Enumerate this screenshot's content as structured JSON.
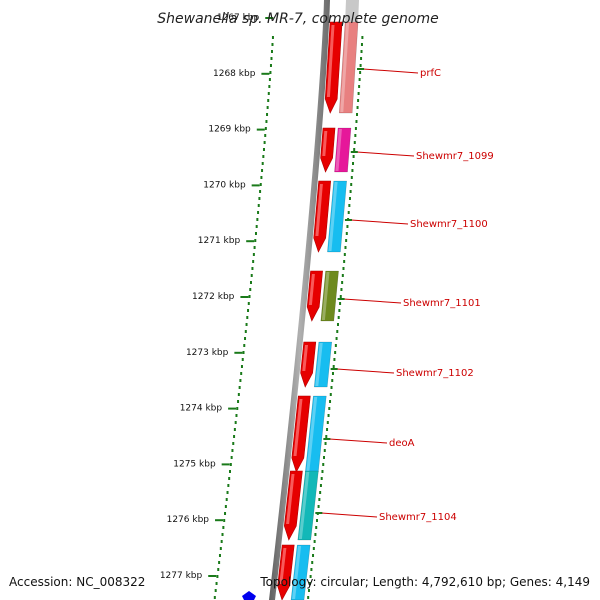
{
  "title": "Shewanella sp. MR-7, complete genome",
  "footer": {
    "accession": "Accession: NC_008322",
    "topology": "Topology: circular; Length: 4,792,610 bp; Genes: 4,149"
  },
  "ticks": [
    "1267 kbp",
    "1268 kbp",
    "1269 kbp",
    "1270 kbp",
    "1271 kbp",
    "1272 kbp",
    "1273 kbp",
    "1274 kbp",
    "1275 kbp",
    "1276 kbp",
    "1277 kbp"
  ],
  "genes": [
    {
      "label": "prfC",
      "color": "#e88080"
    },
    {
      "label": "Shewmr7_1099",
      "color": "#e6179a"
    },
    {
      "label": "Shewmr7_1100",
      "color": "#17bdf0"
    },
    {
      "label": "Shewmr7_1101",
      "color": "#6e8a1e"
    },
    {
      "label": "Shewmr7_1102",
      "color": "#17bdf0"
    },
    {
      "label": "deoA",
      "color": "#17bdf0"
    },
    {
      "label": "Shewmr7_1104",
      "color": "#12b8b8"
    },
    {
      "label": "",
      "color": "#17bdf0"
    }
  ],
  "colors": {
    "cds_strand": "#e60000",
    "backbone": "#8c8c8c",
    "gc_dots": "#1a7a1a",
    "label": "#cc0000",
    "marker": "#0000ee"
  }
}
